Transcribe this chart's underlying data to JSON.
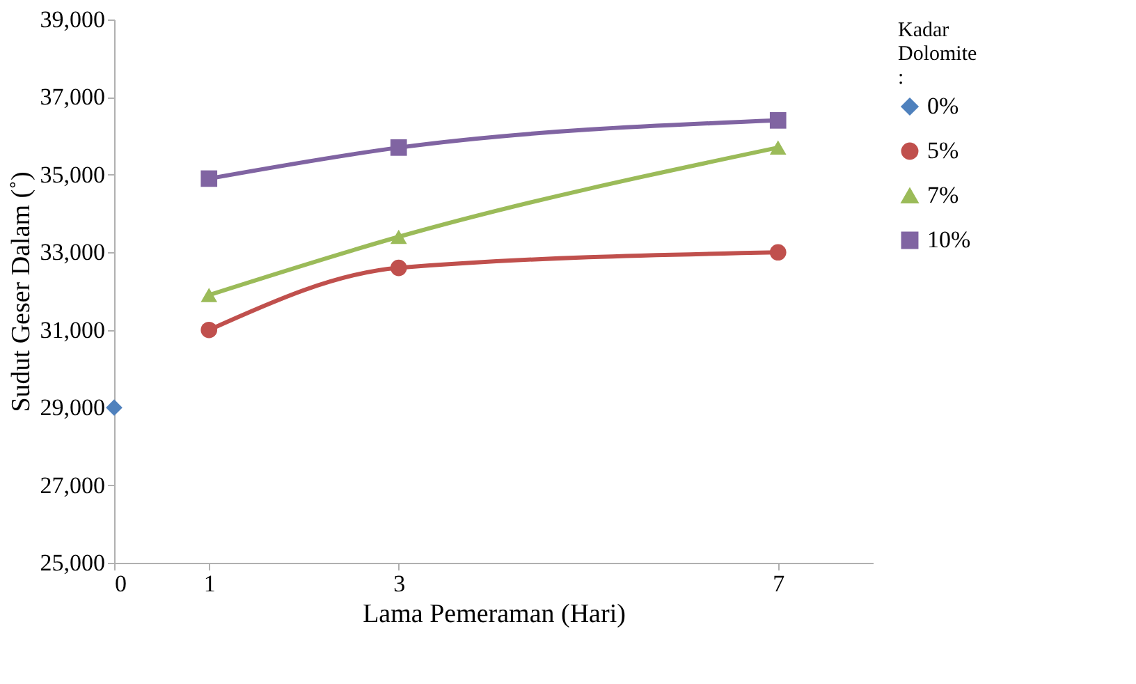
{
  "chart_data": {
    "type": "line",
    "xlabel": "Lama Pemeraman (Hari)",
    "ylabel": "Sudut Geser Dalam (˚)",
    "legend_title": "Kadar Dolomite :",
    "xlim": [
      0,
      8
    ],
    "xticks": [
      0,
      1,
      3,
      7
    ],
    "ylim": [
      25000,
      39000
    ],
    "yticks": [
      {
        "value": 25000,
        "label": "25,000"
      },
      {
        "value": 27000,
        "label": "27,000"
      },
      {
        "value": 29000,
        "label": "29,000"
      },
      {
        "value": 31000,
        "label": "31,000"
      },
      {
        "value": 33000,
        "label": "33,000"
      },
      {
        "value": 35000,
        "label": "35,000"
      },
      {
        "value": 37000,
        "label": "37,000"
      },
      {
        "value": 39000,
        "label": "39,000"
      }
    ],
    "grid": false,
    "legend": "right",
    "line_style": "solid",
    "series": [
      {
        "name": "0%",
        "color": "#4f81bd",
        "marker": "diamond",
        "x": [
          0
        ],
        "values": [
          29000
        ]
      },
      {
        "name": "5%",
        "color": "#c0504d",
        "marker": "circle",
        "x": [
          1,
          3,
          7
        ],
        "values": [
          31000,
          32600,
          33000
        ]
      },
      {
        "name": "7%",
        "color": "#9bbb59",
        "marker": "triangle",
        "x": [
          1,
          3,
          7
        ],
        "values": [
          31900,
          33400,
          35700
        ]
      },
      {
        "name": "10%",
        "color": "#8064a2",
        "marker": "square",
        "x": [
          1,
          3,
          7
        ],
        "values": [
          34900,
          35700,
          36400
        ]
      }
    ]
  }
}
